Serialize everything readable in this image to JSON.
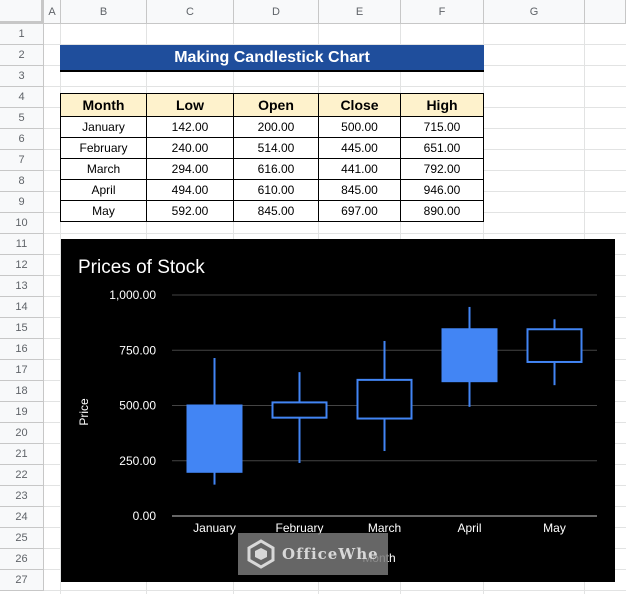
{
  "columns": [
    "A",
    "B",
    "C",
    "D",
    "E",
    "F",
    "G"
  ],
  "rows": [
    "1",
    "2",
    "3",
    "4",
    "5",
    "6",
    "7",
    "8",
    "9",
    "10",
    "11",
    "12",
    "13",
    "14",
    "15",
    "16",
    "17",
    "18",
    "19",
    "20",
    "21",
    "22",
    "23",
    "24",
    "25",
    "26",
    "27"
  ],
  "banner": {
    "title": "Making Candlestick Chart",
    "bg": "#1f4e9c"
  },
  "table": {
    "headers": [
      "Month",
      "Low",
      "Open",
      "Close",
      "High"
    ],
    "rows": [
      [
        "January",
        "142.00",
        "200.00",
        "500.00",
        "715.00"
      ],
      [
        "February",
        "240.00",
        "514.00",
        "445.00",
        "651.00"
      ],
      [
        "March",
        "294.00",
        "616.00",
        "441.00",
        "792.00"
      ],
      [
        "April",
        "494.00",
        "610.00",
        "845.00",
        "946.00"
      ],
      [
        "May",
        "592.00",
        "845.00",
        "697.00",
        "890.00"
      ]
    ]
  },
  "watermark": {
    "text": "OfficeWhe",
    "icon": "officewheel-logo-icon"
  },
  "chart_data": {
    "type": "candlestick",
    "title": "Prices of Stock",
    "xlabel": "Month",
    "ylabel": "Price",
    "ylim": [
      0,
      1000
    ],
    "yticks": [
      "0.00",
      "250.00",
      "500.00",
      "750.00",
      "1,000.00"
    ],
    "ytick_values": [
      0,
      250,
      500,
      750,
      1000
    ],
    "grid": true,
    "background": "#000000",
    "up_color": "#4285f4",
    "categories": [
      "January",
      "February",
      "March",
      "April",
      "May"
    ],
    "low": [
      142,
      240,
      294,
      494,
      592
    ],
    "open": [
      200,
      514,
      616,
      610,
      845
    ],
    "close": [
      500,
      445,
      441,
      845,
      697
    ],
    "high": [
      715,
      651,
      792,
      946,
      890
    ]
  }
}
